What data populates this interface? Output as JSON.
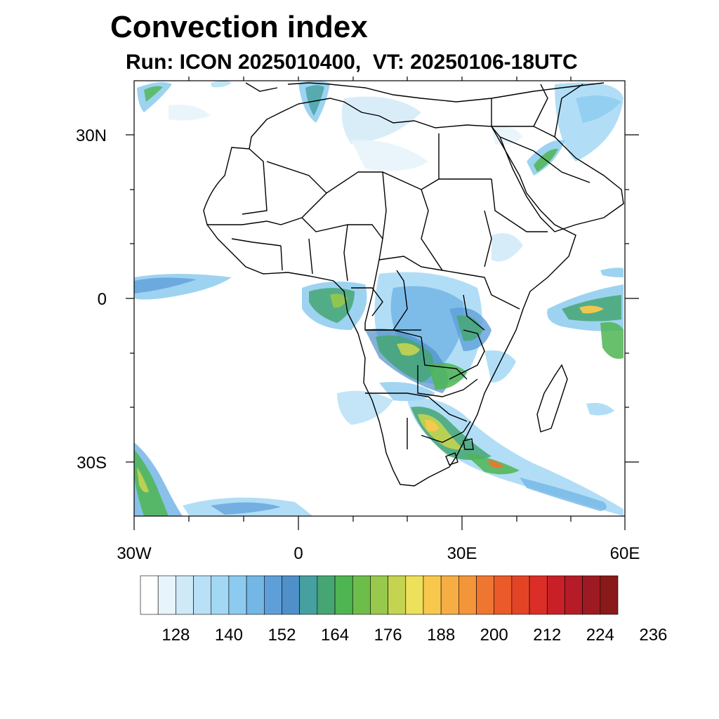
{
  "title": "Convection index",
  "subtitle": "Run: ICON 2025010400,  VT: 20250106-18UTC",
  "map": {
    "region": "Africa",
    "projection": "cylindrical equidistant",
    "lon_range": [
      -30,
      60
    ],
    "lat_range": [
      -40,
      40
    ],
    "lat_ticks": [
      {
        "value": 30,
        "label": "30N"
      },
      {
        "value": 0,
        "label": "0"
      },
      {
        "value": -30,
        "label": "30S"
      }
    ],
    "lon_ticks": [
      {
        "value": -30,
        "label": "30W"
      },
      {
        "value": 0,
        "label": "0"
      },
      {
        "value": 30,
        "label": "30E"
      },
      {
        "value": 60,
        "label": "60E"
      }
    ],
    "boundaries": "country borders",
    "boundary_color": "#000000"
  },
  "colorbar": {
    "orientation": "horizontal",
    "colors": [
      "#ffffff",
      "#e8f4fb",
      "#cfe9f7",
      "#b8e0f6",
      "#a3d8f4",
      "#8ccbef",
      "#74b6e6",
      "#5f9fd9",
      "#4f90c9",
      "#46a0a0",
      "#45a674",
      "#4fb552",
      "#6dbd4b",
      "#98c84c",
      "#c5d450",
      "#ede05a",
      "#f8c84d",
      "#f6ad44",
      "#f39539",
      "#ef7630",
      "#ea5a2a",
      "#e34426",
      "#db2e26",
      "#c92028",
      "#b51c27",
      "#9e1a22",
      "#8a1a1a"
    ],
    "labels": [
      "128",
      "140",
      "152",
      "164",
      "176",
      "188",
      "200",
      "212",
      "224",
      "236"
    ]
  }
}
